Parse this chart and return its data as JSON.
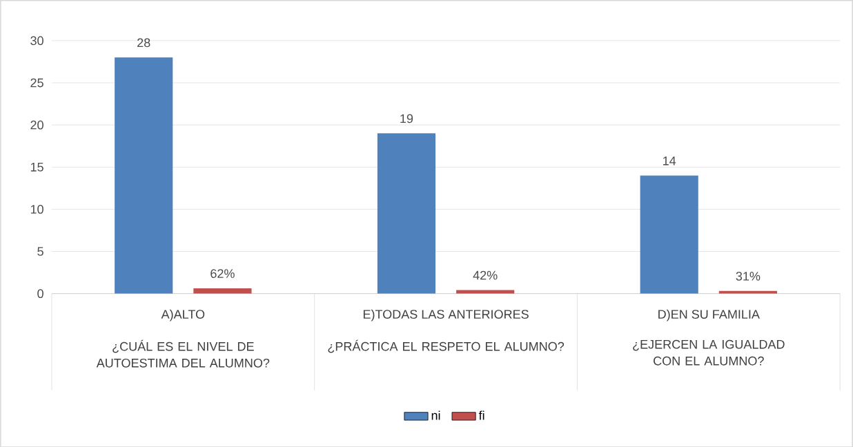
{
  "chart_data": {
    "type": "bar",
    "categories": [
      "A)ALTO",
      "E)TODAS LAS  ANTERIORES",
      "D)EN SU FAMILIA"
    ],
    "annotations": [
      "¿CUÁL ES EL NIVEL DE AUTOESTIMA DEL ALUMNO?",
      "¿PRÁCTICA EL RESPETO EL ALUMNO?",
      "¿EJERCEN LA IGUALDAD CON EL ALUMNO?"
    ],
    "series": [
      {
        "name": "ni",
        "color": "#4f81bd",
        "values": [
          28,
          19,
          14
        ],
        "value_labels": [
          "28",
          "19",
          "14"
        ]
      },
      {
        "name": "fi",
        "color": "#c0504d",
        "values": [
          0.62,
          0.42,
          0.31
        ],
        "value_labels": [
          "62%",
          "42%",
          "31%"
        ]
      }
    ],
    "ylim": [
      0,
      30
    ],
    "yticks": [
      0,
      5,
      10,
      15,
      20,
      25,
      30
    ],
    "grid": "y",
    "legend": "bottom"
  }
}
